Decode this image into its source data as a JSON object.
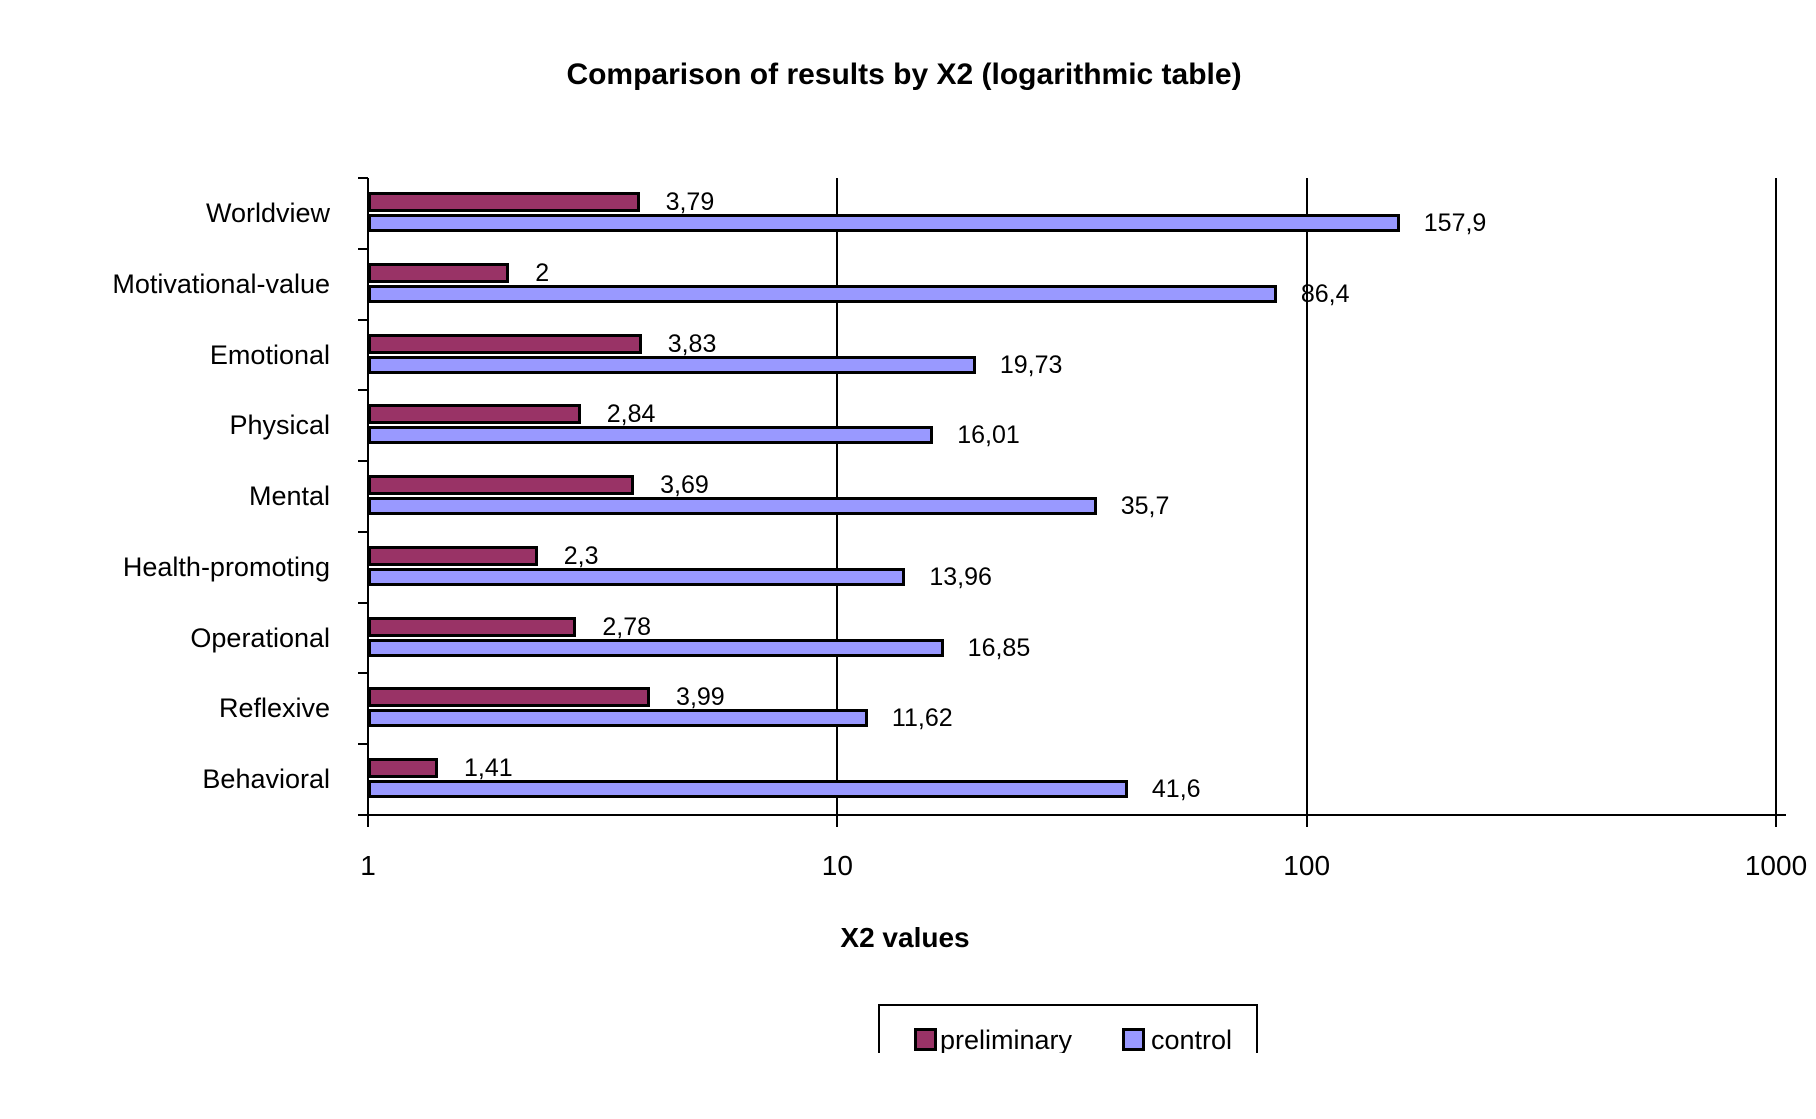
{
  "title": "Comparison of results by X2 (logarithmic table)",
  "x_axis": {
    "label": "X2 values",
    "scale": "logarithmic",
    "min": 1,
    "max": 1000,
    "tick_labels": [
      "1",
      "10",
      "100",
      "1000"
    ]
  },
  "legend": {
    "items": [
      {
        "label": "preliminary",
        "color": "#993366"
      },
      {
        "label": "control",
        "color": "#9999FF"
      }
    ]
  },
  "colors": {
    "background": "#FFFFFF",
    "axis": "#000000",
    "bar_border": "#000000",
    "text": "#000000",
    "preliminary": "#993366",
    "control": "#9999FF"
  },
  "chart_data": {
    "type": "bar",
    "orientation": "horizontal",
    "title": "Comparison of results by X2 (logarithmic table)",
    "xlabel": "X2 values",
    "x_scale": "log",
    "xlim": [
      1,
      1000
    ],
    "x_ticks": [
      1,
      10,
      100,
      1000
    ],
    "grid": "vertical lines at 10, 100, 1000",
    "legend_position": "bottom",
    "categories": [
      "Worldview",
      "Motivational-value",
      "Emotional",
      "Physical",
      "Mental",
      "Health-promoting",
      "Operational",
      "Reflexive",
      "Behavioral"
    ],
    "series": [
      {
        "name": "preliminary",
        "color": "#993366",
        "values": [
          3.79,
          2,
          3.83,
          2.84,
          3.69,
          2.3,
          2.78,
          3.99,
          1.41
        ],
        "value_labels": [
          "3,79",
          "2",
          "3,83",
          "2,84",
          "3,69",
          "2,3",
          "2,78",
          "3,99",
          "1,41"
        ]
      },
      {
        "name": "control",
        "color": "#9999FF",
        "values": [
          157.9,
          86.4,
          19.73,
          16.01,
          35.7,
          13.96,
          16.85,
          11.62,
          41.6
        ],
        "value_labels": [
          "157,9",
          "86,4",
          "19,73",
          "16,01",
          "35,7",
          "13,96",
          "16,85",
          "11,62",
          "41,6"
        ]
      }
    ]
  }
}
